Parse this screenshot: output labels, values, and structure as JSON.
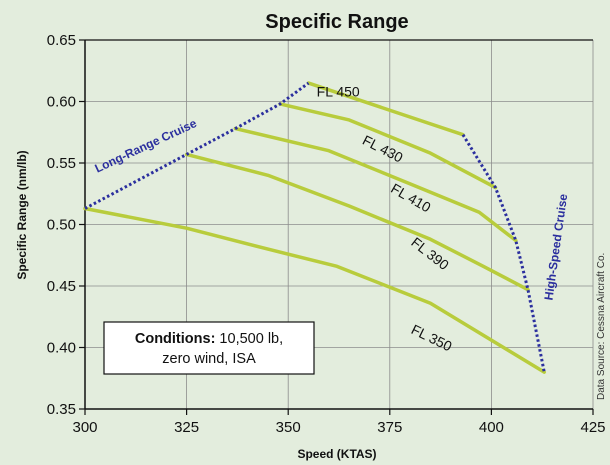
{
  "chart_data": {
    "type": "line",
    "title": "Specific Range",
    "xlabel": "Speed (KTAS)",
    "ylabel": "Specific Range (nm/lb)",
    "xlim": [
      300,
      425
    ],
    "ylim": [
      0.35,
      0.65
    ],
    "x_ticks": [
      "300",
      "325",
      "350",
      "375",
      "400",
      "425"
    ],
    "y_ticks": [
      "0.35",
      "0.40",
      "0.45",
      "0.50",
      "0.55",
      "0.60",
      "0.65"
    ],
    "grid": true,
    "series": [
      {
        "name": "FL 450",
        "x": [
          355,
          393
        ],
        "y": [
          0.615,
          0.573
        ]
      },
      {
        "name": "FL 430",
        "x": [
          348,
          365,
          385,
          401
        ],
        "y": [
          0.598,
          0.585,
          0.558,
          0.53
        ]
      },
      {
        "name": "FL 410",
        "x": [
          337,
          360,
          380,
          397,
          406
        ],
        "y": [
          0.578,
          0.56,
          0.533,
          0.51,
          0.487
        ]
      },
      {
        "name": "FL 390",
        "x": [
          325,
          345,
          365,
          385,
          398,
          409
        ],
        "y": [
          0.557,
          0.54,
          0.515,
          0.488,
          0.466,
          0.447
        ]
      },
      {
        "name": "FL 350",
        "x": [
          300,
          325,
          345,
          362,
          385,
          413
        ],
        "y": [
          0.513,
          0.497,
          0.48,
          0.466,
          0.436,
          0.38
        ]
      }
    ],
    "envelopes": [
      {
        "name": "Long-Range Cruise",
        "x": [
          300,
          325,
          337,
          348,
          355
        ],
        "y": [
          0.513,
          0.557,
          0.578,
          0.598,
          0.615
        ]
      },
      {
        "name": "High-Speed Cruise",
        "x": [
          393,
          401,
          406,
          409,
          413
        ],
        "y": [
          0.573,
          0.53,
          0.487,
          0.447,
          0.38
        ]
      }
    ],
    "annotation": {
      "bold": "Conditions:",
      "line1": " 10,500 lb,",
      "line2": "zero wind, ISA"
    },
    "source": "Data Source: Cessna Aircraft Co."
  },
  "colors": {
    "background": "#e3eddd",
    "series": "#b8cc3c",
    "envelope": "#2b2f9e",
    "axis": "#111111",
    "grid": "#8c8c8c"
  }
}
